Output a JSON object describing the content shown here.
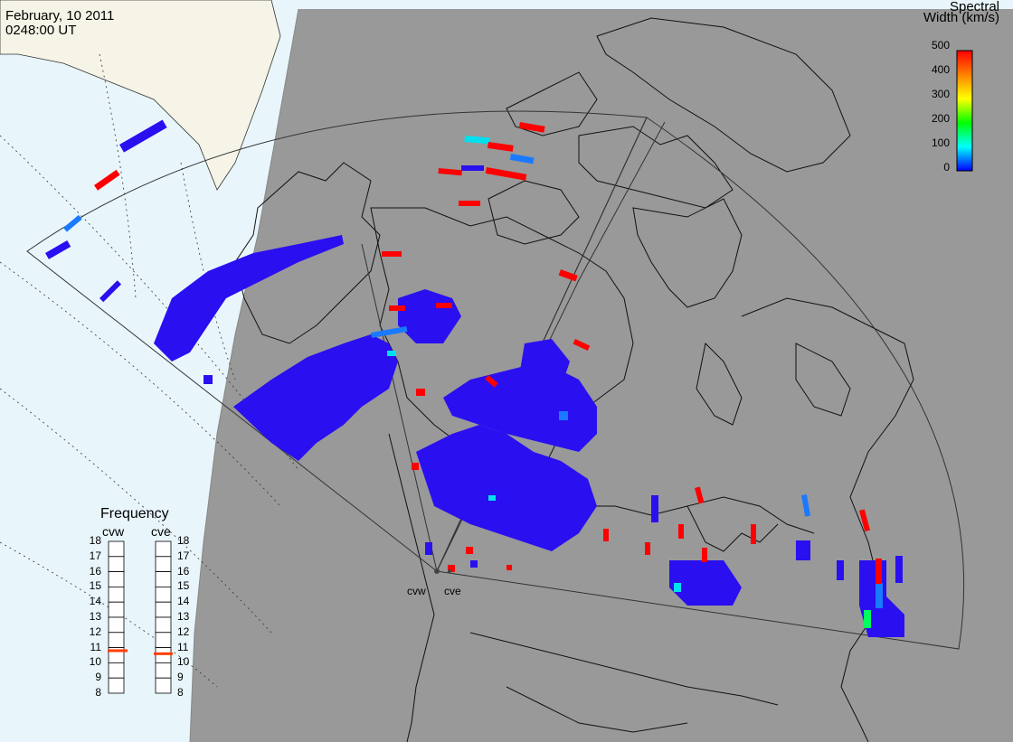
{
  "header": {
    "date": "February, 10 2011",
    "time": "0248:00 UT"
  },
  "colorbar": {
    "title_line1": "Spectral",
    "title_line2": "Width (km/s)",
    "ticks": [
      "500",
      "400",
      "300",
      "200",
      "100",
      "0"
    ],
    "colors": [
      "#ff0000",
      "#ff8000",
      "#ffff00",
      "#00ff00",
      "#00ffff",
      "#0000ff"
    ]
  },
  "frequency_panel": {
    "title": "Frequency",
    "radars": [
      "cvw",
      "cve"
    ],
    "scale": [
      "18",
      "17",
      "16",
      "15",
      "14",
      "13",
      "12",
      "11",
      "10",
      "9",
      "8"
    ],
    "cvw_value": 10.8,
    "cve_value": 10.6,
    "marker_color": "#ff4000"
  },
  "radar_labels": {
    "west": "cvw",
    "east": "cve"
  },
  "colors": {
    "ocean": "#e8f6fc",
    "night": "#999999",
    "land_day": "#f5f4e6",
    "scatter_low": "#2a0ff0",
    "scatter_high": "#ff0000",
    "scatter_mid": "#1a7aff",
    "scatter_cyan": "#00e0f0"
  }
}
